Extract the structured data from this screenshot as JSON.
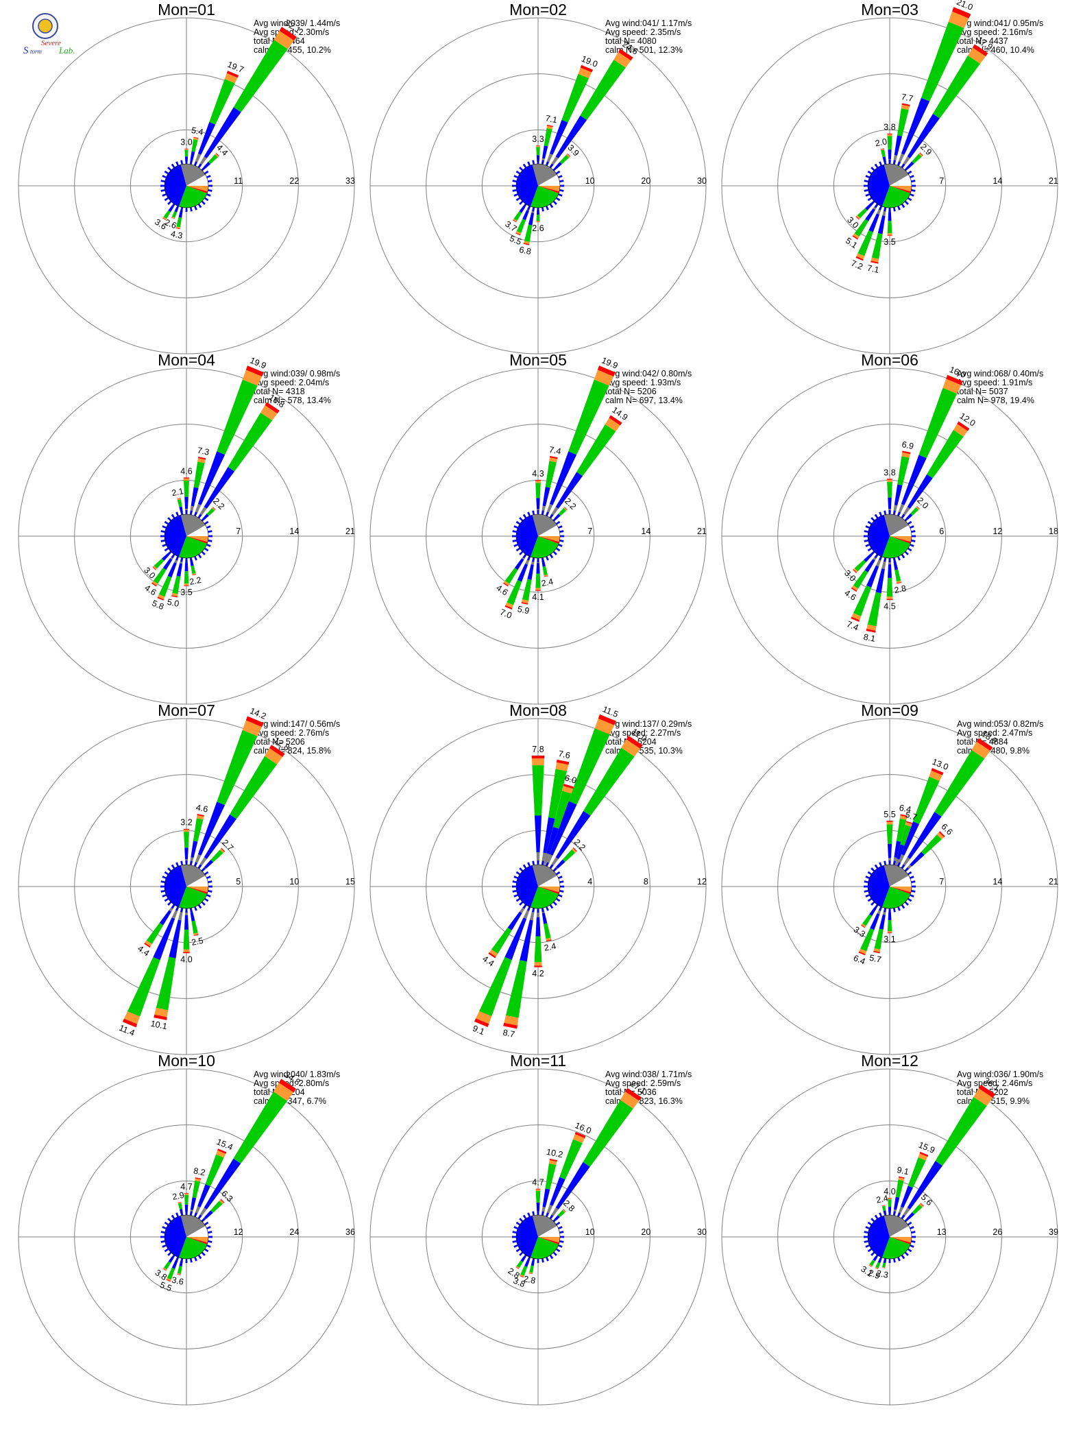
{
  "logo": {
    "line1": "Severe",
    "line2": "Storm",
    "line3": "Lab."
  },
  "stat_labels": {
    "avg_wind": "Avg wind",
    "avg_speed": "Avg speed",
    "total": "total N=",
    "calm": "calm N="
  },
  "colors": {
    "speed_1": "#0000ff",
    "speed_2": "#00cc00",
    "speed_3": "#ff9933",
    "speed_4": "#ff0000",
    "speed_5": "#9900cc",
    "calm": "#808080",
    "grid": "#808080"
  },
  "chart_data": [
    {
      "type": "wind-rose",
      "title": "Mon=01",
      "avg_wind": "039/ 1.44m/s",
      "avg_speed": "2.30m/s",
      "total_n": "4464",
      "calm_n": "455, 10.2%",
      "ring_labels": [
        "11",
        "22",
        "33"
      ],
      "rmax": 33,
      "calm_fraction": 0.3,
      "bars": [
        {
          "dir": 22.5,
          "value": 19.7
        },
        {
          "dir": 33.75,
          "value": 32.1
        },
        {
          "dir": 11.25,
          "value": 5.4
        },
        {
          "dir": 0,
          "value": 3.0
        },
        {
          "dir": 45,
          "value": 4.4
        },
        {
          "dir": 202.5,
          "value": 2.6
        },
        {
          "dir": 191.25,
          "value": 4.3
        },
        {
          "dir": 213.75,
          "value": 3.6
        }
      ]
    },
    {
      "type": "wind-rose",
      "title": "Mon=02",
      "avg_wind": "041/ 1.17m/s",
      "avg_speed": "2.35m/s",
      "total_n": "4080",
      "calm_n": "501, 12.3%",
      "ring_labels": [
        "10",
        "20",
        "30"
      ],
      "rmax": 30,
      "calm_fraction": 0.33,
      "bars": [
        {
          "dir": 22.5,
          "value": 19.0
        },
        {
          "dir": 33.75,
          "value": 24.6
        },
        {
          "dir": 11.25,
          "value": 7.1
        },
        {
          "dir": 0,
          "value": 3.3
        },
        {
          "dir": 45,
          "value": 3.9
        },
        {
          "dir": 191.25,
          "value": 6.8
        },
        {
          "dir": 202.5,
          "value": 5.5
        },
        {
          "dir": 213.75,
          "value": 3.7
        },
        {
          "dir": 180,
          "value": 2.6
        }
      ]
    },
    {
      "type": "wind-rose",
      "title": "Mon=03",
      "avg_wind": "041/ 0.95m/s",
      "avg_speed": "2.16m/s",
      "total_n": "4437",
      "calm_n": "460, 10.4%",
      "ring_labels": [
        "7",
        "14",
        "21"
      ],
      "rmax": 21,
      "calm_fraction": 0.3,
      "bars": [
        {
          "dir": 22.5,
          "value": 21.0
        },
        {
          "dir": 33.75,
          "value": 17.9
        },
        {
          "dir": 11.25,
          "value": 7.7
        },
        {
          "dir": 0,
          "value": 3.8
        },
        {
          "dir": 348.75,
          "value": 2.0
        },
        {
          "dir": 45,
          "value": 2.9
        },
        {
          "dir": 202.5,
          "value": 7.2
        },
        {
          "dir": 191.25,
          "value": 7.1
        },
        {
          "dir": 213.75,
          "value": 5.1
        },
        {
          "dir": 225,
          "value": 3.0
        },
        {
          "dir": 180,
          "value": 3.5
        }
      ]
    },
    {
      "type": "wind-rose",
      "title": "Mon=04",
      "avg_wind": "039/ 0.98m/s",
      "avg_speed": "2.04m/s",
      "total_n": "4318",
      "calm_n": "578, 13.4%",
      "ring_labels": [
        "7",
        "14",
        "21"
      ],
      "rmax": 21,
      "calm_fraction": 0.33,
      "bars": [
        {
          "dir": 22.5,
          "value": 19.9
        },
        {
          "dir": 33.75,
          "value": 16.8
        },
        {
          "dir": 11.25,
          "value": 7.3
        },
        {
          "dir": 0,
          "value": 4.6
        },
        {
          "dir": 348.75,
          "value": 2.1
        },
        {
          "dir": 45,
          "value": 2.2
        },
        {
          "dir": 202.5,
          "value": 5.8
        },
        {
          "dir": 191.25,
          "value": 5.0
        },
        {
          "dir": 213.75,
          "value": 4.6
        },
        {
          "dir": 225,
          "value": 3.0
        },
        {
          "dir": 180,
          "value": 3.5
        },
        {
          "dir": 168.75,
          "value": 2.2
        }
      ]
    },
    {
      "type": "wind-rose",
      "title": "Mon=05",
      "avg_wind": "042/ 0.80m/s",
      "avg_speed": "1.93m/s",
      "total_n": "5206",
      "calm_n": "697, 13.4%",
      "ring_labels": [
        "7",
        "14",
        "21"
      ],
      "rmax": 21,
      "calm_fraction": 0.33,
      "bars": [
        {
          "dir": 22.5,
          "value": 19.9
        },
        {
          "dir": 33.75,
          "value": 14.9
        },
        {
          "dir": 11.25,
          "value": 7.4
        },
        {
          "dir": 0,
          "value": 4.3
        },
        {
          "dir": 45,
          "value": 2.2
        },
        {
          "dir": 202.5,
          "value": 7.0
        },
        {
          "dir": 191.25,
          "value": 5.9
        },
        {
          "dir": 213.75,
          "value": 4.6
        },
        {
          "dir": 180,
          "value": 4.1
        },
        {
          "dir": 168.75,
          "value": 2.4
        }
      ]
    },
    {
      "type": "wind-rose",
      "title": "Mon=06",
      "avg_wind": "068/ 0.40m/s",
      "avg_speed": "1.91m/s",
      "total_n": "5037",
      "calm_n": "978, 19.4%",
      "ring_labels": [
        "6",
        "12",
        "18"
      ],
      "rmax": 18,
      "calm_fraction": 0.37,
      "bars": [
        {
          "dir": 22.5,
          "value": 16.0
        },
        {
          "dir": 33.75,
          "value": 12.0
        },
        {
          "dir": 11.25,
          "value": 6.9
        },
        {
          "dir": 0,
          "value": 3.8
        },
        {
          "dir": 45,
          "value": 2.0
        },
        {
          "dir": 202.5,
          "value": 7.4
        },
        {
          "dir": 191.25,
          "value": 8.1
        },
        {
          "dir": 213.75,
          "value": 4.6
        },
        {
          "dir": 225,
          "value": 3.0
        },
        {
          "dir": 180,
          "value": 4.5
        },
        {
          "dir": 168.75,
          "value": 2.8
        }
      ]
    },
    {
      "type": "wind-rose",
      "title": "Mon=07",
      "avg_wind": "147/ 0.56m/s",
      "avg_speed": "2.76m/s",
      "total_n": "5206",
      "calm_n": "824, 15.8%",
      "ring_labels": [
        "5",
        "10",
        "15"
      ],
      "rmax": 15,
      "calm_fraction": 0.43,
      "bars": [
        {
          "dir": 22.5,
          "value": 14.2
        },
        {
          "dir": 33.75,
          "value": 12.8
        },
        {
          "dir": 11.25,
          "value": 4.6
        },
        {
          "dir": 0,
          "value": 3.2
        },
        {
          "dir": 45,
          "value": 2.7
        },
        {
          "dir": 202.5,
          "value": 11.4
        },
        {
          "dir": 191.25,
          "value": 10.1
        },
        {
          "dir": 213.75,
          "value": 4.4
        },
        {
          "dir": 180,
          "value": 4.0
        },
        {
          "dir": 168.75,
          "value": 2.5
        }
      ]
    },
    {
      "type": "wind-rose",
      "title": "Mon=08",
      "avg_wind": "137/ 0.29m/s",
      "avg_speed": "2.27m/s",
      "total_n": "5204",
      "calm_n": "535, 10.3%",
      "ring_labels": [
        "4",
        "8",
        "12"
      ],
      "rmax": 12,
      "calm_fraction": 0.5,
      "bars": [
        {
          "dir": 0,
          "value": 7.8
        },
        {
          "dir": 11.25,
          "value": 7.6
        },
        {
          "dir": 22.5,
          "value": 11.5
        },
        {
          "dir": 33.75,
          "value": 11.0
        },
        {
          "dir": 16.9,
          "value": 6.0
        },
        {
          "dir": 45,
          "value": 2.2
        },
        {
          "dir": 202.5,
          "value": 9.1
        },
        {
          "dir": 191.25,
          "value": 8.7
        },
        {
          "dir": 213.75,
          "value": 4.4
        },
        {
          "dir": 180,
          "value": 4.2
        },
        {
          "dir": 168.75,
          "value": 2.4
        }
      ]
    },
    {
      "type": "wind-rose",
      "title": "Mon=09",
      "avg_wind": "053/ 0.82m/s",
      "avg_speed": "2.47m/s",
      "total_n": "4884",
      "calm_n": "480, 9.8%",
      "ring_labels": [
        "7",
        "14",
        "21"
      ],
      "rmax": 21,
      "calm_fraction": 0.33,
      "bars": [
        {
          "dir": 33.75,
          "value": 18.9
        },
        {
          "dir": 22.5,
          "value": 13.0
        },
        {
          "dir": 11.25,
          "value": 6.4
        },
        {
          "dir": 0,
          "value": 5.5
        },
        {
          "dir": 16.9,
          "value": 5.7
        },
        {
          "dir": 45,
          "value": 6.6
        },
        {
          "dir": 202.5,
          "value": 6.4
        },
        {
          "dir": 191.25,
          "value": 5.7
        },
        {
          "dir": 213.75,
          "value": 3.3
        },
        {
          "dir": 180,
          "value": 3.1
        }
      ]
    },
    {
      "type": "wind-rose",
      "title": "Mon=10",
      "avg_wind": "040/ 1.83m/s",
      "avg_speed": "2.80m/s",
      "total_n": "5204",
      "calm_n": "347, 6.7%",
      "ring_labels": [
        "12",
        "24",
        "36"
      ],
      "rmax": 36,
      "calm_fraction": 0.29,
      "bars": [
        {
          "dir": 33.75,
          "value": 34.8
        },
        {
          "dir": 22.5,
          "value": 15.4
        },
        {
          "dir": 11.25,
          "value": 8.2
        },
        {
          "dir": 0,
          "value": 4.7
        },
        {
          "dir": 348.75,
          "value": 2.9
        },
        {
          "dir": 45,
          "value": 6.3
        },
        {
          "dir": 202.5,
          "value": 5.5
        },
        {
          "dir": 191.25,
          "value": 3.6
        },
        {
          "dir": 213.75,
          "value": 3.8
        }
      ]
    },
    {
      "type": "wind-rose",
      "title": "Mon=11",
      "avg_wind": "038/ 1.71m/s",
      "avg_speed": "2.59m/s",
      "total_n": "5036",
      "calm_n": "823, 16.3%",
      "ring_labels": [
        "10",
        "20",
        "30"
      ],
      "rmax": 30,
      "calm_fraction": 0.33,
      "bars": [
        {
          "dir": 33.75,
          "value": 27.1
        },
        {
          "dir": 22.5,
          "value": 16.0
        },
        {
          "dir": 11.25,
          "value": 10.2
        },
        {
          "dir": 0,
          "value": 4.7
        },
        {
          "dir": 45,
          "value": 2.8
        },
        {
          "dir": 202.5,
          "value": 3.8
        },
        {
          "dir": 191.25,
          "value": 2.8
        },
        {
          "dir": 213.75,
          "value": 2.8
        }
      ]
    },
    {
      "type": "wind-rose",
      "title": "Mon=12",
      "avg_wind": "036/ 1.90m/s",
      "avg_speed": "2.46m/s",
      "total_n": "5202",
      "calm_n": "515, 9.9%",
      "ring_labels": [
        "13",
        "26",
        "39"
      ],
      "rmax": 39,
      "calm_fraction": 0.28,
      "bars": [
        {
          "dir": 33.75,
          "value": 36.1
        },
        {
          "dir": 22.5,
          "value": 15.9
        },
        {
          "dir": 11.25,
          "value": 9.1
        },
        {
          "dir": 0,
          "value": 4.0
        },
        {
          "dir": 348.75,
          "value": 2.4
        },
        {
          "dir": 45,
          "value": 5.6
        },
        {
          "dir": 202.5,
          "value": 2.9
        },
        {
          "dir": 191.25,
          "value": 2.3
        },
        {
          "dir": 213.75,
          "value": 3.1
        }
      ]
    }
  ]
}
